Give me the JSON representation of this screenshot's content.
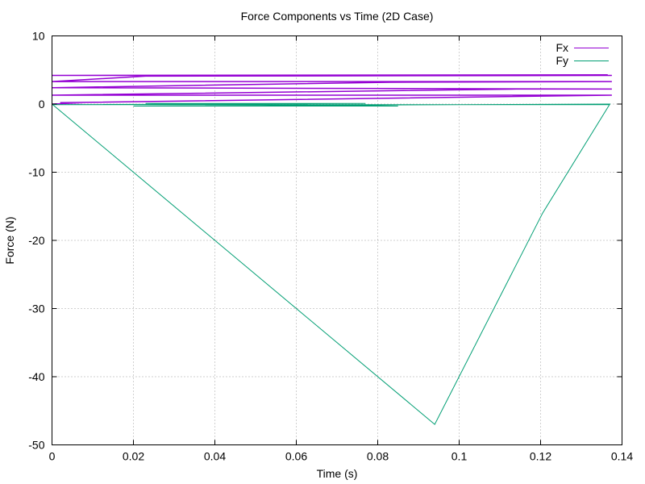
{
  "chart_data": {
    "type": "line",
    "title": "Force Components vs Time (2D Case)",
    "xlabel": "Time (s)",
    "ylabel": "Force (N)",
    "xlim": [
      0,
      0.14
    ],
    "ylim": [
      -50,
      10
    ],
    "xticks": [
      0,
      0.02,
      0.04,
      0.06,
      0.08,
      0.1,
      0.12,
      0.14
    ],
    "xtick_labels": [
      "0",
      "0.02",
      "0.04",
      "0.06",
      "0.08",
      "0.1",
      "0.12",
      "0.14"
    ],
    "yticks": [
      -50,
      -40,
      -30,
      -20,
      -10,
      0,
      10
    ],
    "ytick_labels": [
      "-50",
      "-40",
      "-30",
      "-20",
      "-10",
      "0",
      "10"
    ],
    "grid": true,
    "legend_position": "top-right",
    "series": [
      {
        "name": "Fx",
        "color": "#9400d3",
        "x": [
          0,
          0.008,
          0.002,
          0.1375,
          0.0,
          0.114,
          0.1375,
          0.0,
          0.083,
          0.1375,
          0.0,
          0.023,
          0.1375,
          0.0,
          0.1365
        ],
        "y": [
          0,
          0.2,
          0.2,
          1.3,
          1.3,
          2.2,
          2.2,
          2.4,
          3.2,
          3.3,
          3.3,
          4.1,
          4.2,
          4.2,
          4.3
        ]
      },
      {
        "name": "Fy",
        "color": "#009e73",
        "x": [
          0,
          0.094,
          0.1205,
          0.137,
          0.02,
          0.085,
          0.023,
          0.077,
          0.0,
          0.137
        ],
        "y": [
          0,
          -47,
          -16,
          0,
          -0.3,
          -0.3,
          0.1,
          0.1,
          -0.1,
          -0.1
        ]
      }
    ]
  }
}
